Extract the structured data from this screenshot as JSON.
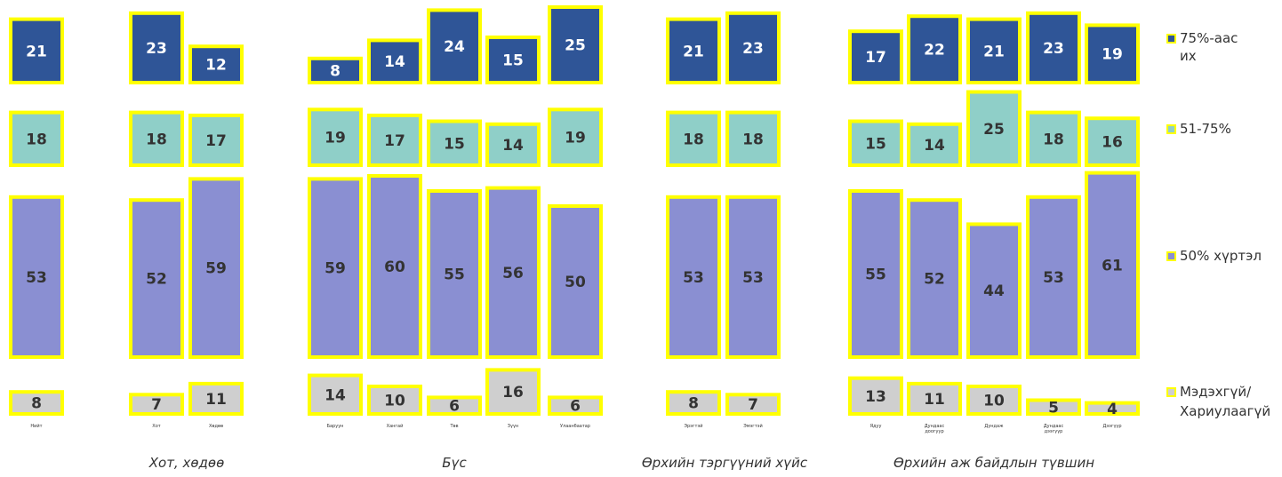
{
  "chart_data": {
    "type": "bar",
    "layout": "small-multiples stacked by response category",
    "colors": {
      "75%-аас их": "#2f5597",
      "51-75%": "#8fcfc8",
      "50% хүртэл": "#8a8fd2",
      "Мэдэхгүй/ Хариулаагүй": "#cfcfcf",
      "border": "#ffff00"
    },
    "groups": [
      {
        "label": "",
        "categories": [
          "Нийт"
        ]
      },
      {
        "label": "Хот, хөдөө",
        "categories": [
          "Хот",
          "Хөдөө"
        ]
      },
      {
        "label": "Бүс",
        "categories": [
          "Баруун",
          "Хангай",
          "Төв",
          "Зүүн",
          "Улаанбаатар"
        ]
      },
      {
        "label": "Өрхийн тэргүүний хүйс",
        "categories": [
          "Эрэгтэй",
          "Эмэгтэй"
        ]
      },
      {
        "label": "Өрхийн аж байдлын түвшин",
        "categories": [
          "Ядуу",
          "Дундаас доогуур",
          "Дундаж",
          "Дундаас дээгүүр",
          "Дээгүүр"
        ]
      }
    ],
    "series": [
      {
        "name": "75%-аас их",
        "values": [
          21,
          23,
          12,
          8,
          14,
          24,
          15,
          25,
          21,
          23,
          17,
          22,
          21,
          23,
          19
        ]
      },
      {
        "name": "51-75%",
        "values": [
          18,
          18,
          17,
          19,
          17,
          15,
          14,
          19,
          18,
          18,
          15,
          14,
          25,
          18,
          16
        ]
      },
      {
        "name": "50% хүртэл",
        "values": [
          53,
          52,
          59,
          59,
          60,
          55,
          56,
          50,
          53,
          53,
          55,
          52,
          44,
          53,
          61
        ]
      },
      {
        "name": "Мэдэхгүй/ Хариулаагүй",
        "values": [
          8,
          7,
          11,
          14,
          10,
          6,
          16,
          6,
          8,
          7,
          13,
          11,
          10,
          5,
          4
        ]
      }
    ],
    "legend": [
      "75%-аас их",
      "51-75%",
      "50% хүртэл",
      "Мэдэхгүй/ Хариулаагүй"
    ],
    "legend_position": "right",
    "grid": false,
    "xlabel": "",
    "ylabel": ""
  }
}
